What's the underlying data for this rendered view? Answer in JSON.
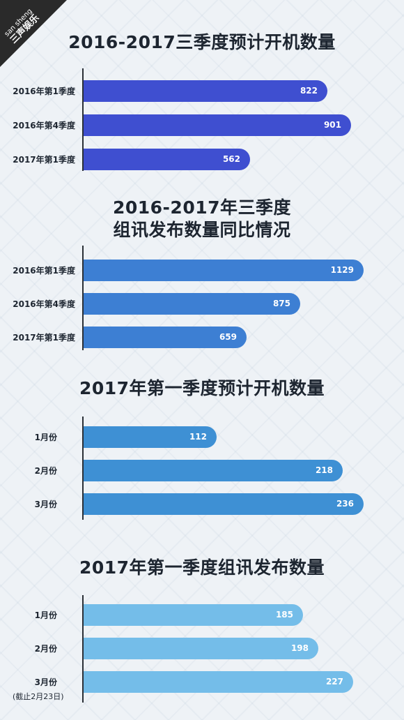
{
  "watermark": {
    "en": "san sheng",
    "cn": "三声娱乐"
  },
  "chart_data": [
    {
      "type": "bar",
      "orientation": "horizontal",
      "title": "2016-2017三季度预计开机数量",
      "categories": [
        "2016年第1季度",
        "2016年第4季度",
        "2017年第1季度"
      ],
      "values": [
        822,
        901,
        562
      ],
      "color": "#3f4fd0",
      "xlim": [
        0,
        960
      ]
    },
    {
      "type": "bar",
      "orientation": "horizontal",
      "title": "2016-2017年三季度\n组讯发布数量同比情况",
      "categories": [
        "2016年第1季度",
        "2016年第4季度",
        "2017年第1季度"
      ],
      "values": [
        1129,
        875,
        659
      ],
      "color": "#3d7fd3",
      "xlim": [
        0,
        1150
      ]
    },
    {
      "type": "bar",
      "orientation": "horizontal",
      "title": "2017年第一季度预计开机数量",
      "categories": [
        "1月份",
        "2月份",
        "3月份"
      ],
      "values": [
        112,
        218,
        236
      ],
      "color": "#3e90d4",
      "xlim": [
        0,
        240
      ]
    },
    {
      "type": "bar",
      "orientation": "horizontal",
      "title": "2017年第一季度组讯发布数量",
      "categories": [
        "1月份",
        "2月份",
        "3月份"
      ],
      "values": [
        185,
        198,
        227
      ],
      "color": "#74bde9",
      "xlim": [
        0,
        240
      ],
      "note": "(截止2月23日)"
    }
  ]
}
